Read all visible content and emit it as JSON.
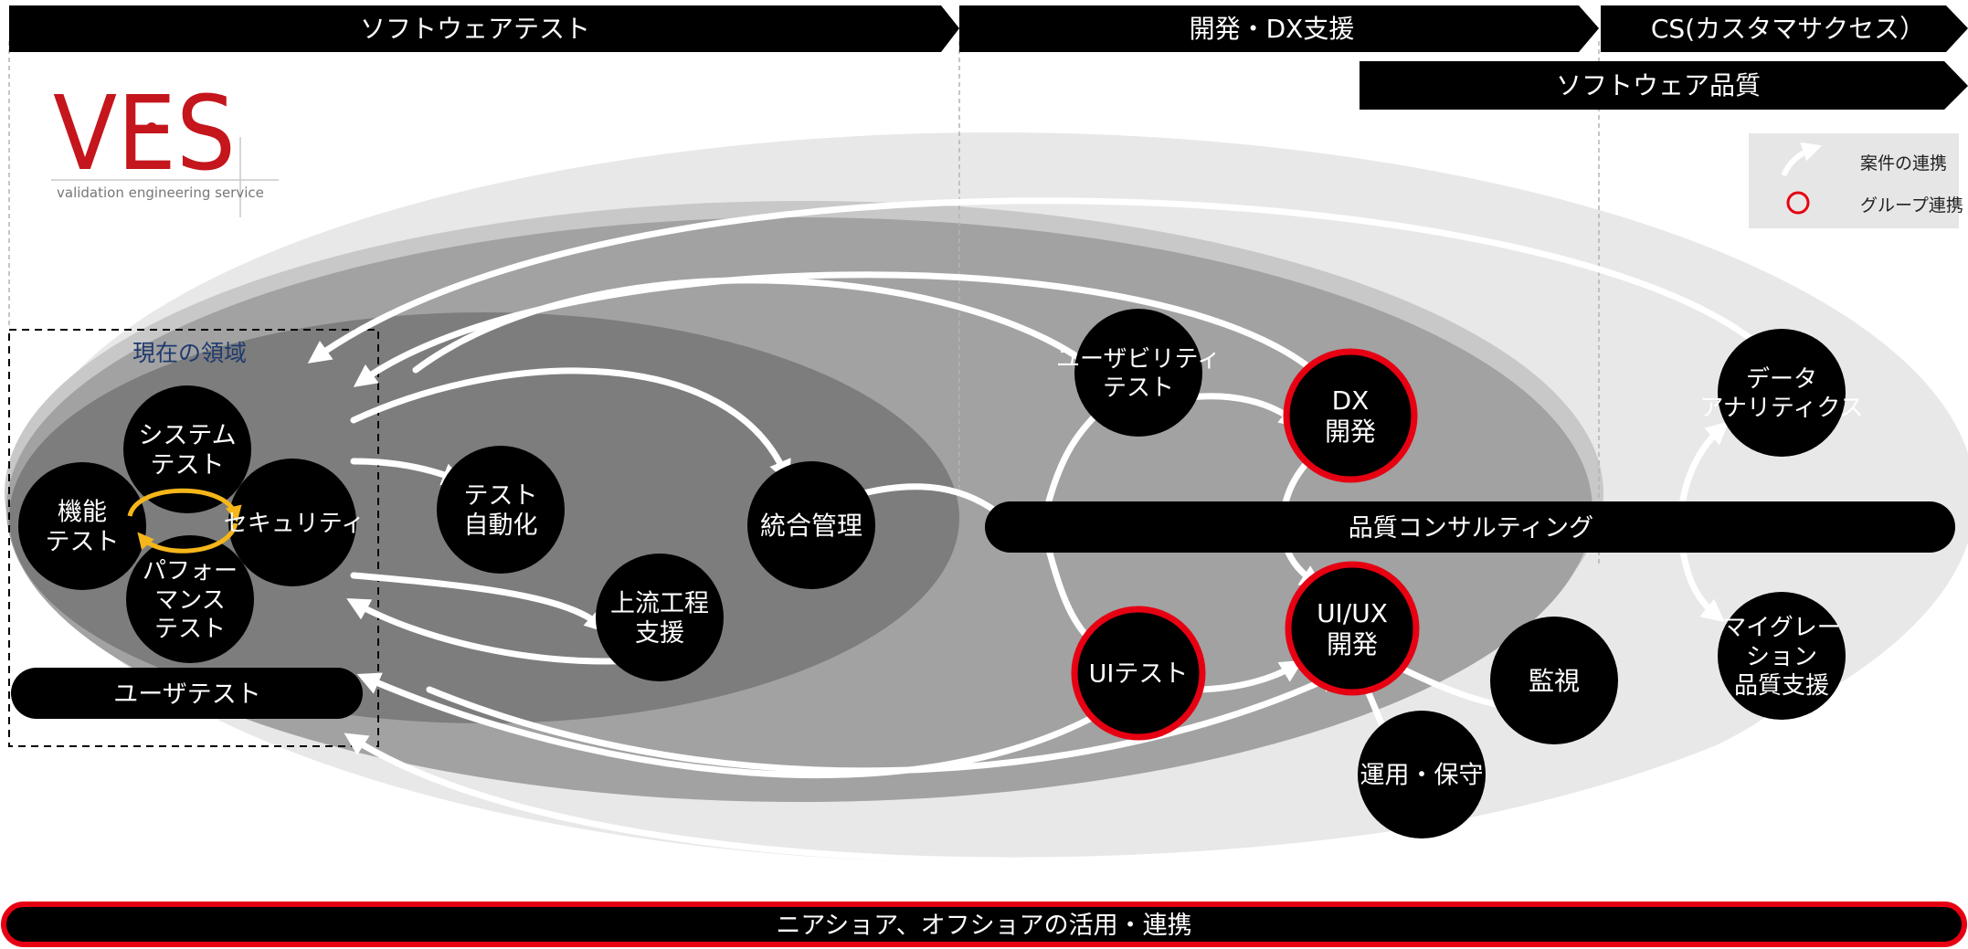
{
  "banners": {
    "software_test": "ソフトウェアテスト",
    "dev_dx": "開発・DX支援",
    "cs": "CS(カスタマサクセス）",
    "software_quality": "ソフトウェア品質"
  },
  "logo": {
    "text": "VES",
    "tagline": "validation engineering service"
  },
  "legend": {
    "arrow_label": "案件の連携",
    "circle_label": "グループ連携"
  },
  "region_label": "現在の領域",
  "nodes": {
    "system_test": [
      "システム",
      "テスト"
    ],
    "functional_test": [
      "機能",
      "テスト"
    ],
    "security": [
      "セキュリティ"
    ],
    "performance_test": [
      "パフォー",
      "マンス",
      "テスト"
    ],
    "test_automation": [
      "テスト",
      "自動化"
    ],
    "integrated_mgmt": [
      "統合管理"
    ],
    "upstream": [
      "上流工程",
      "支援"
    ],
    "usability_test": [
      "ユーザビリティ",
      "テスト"
    ],
    "dx_dev": [
      "DX",
      "開発"
    ],
    "ui_test": [
      "UIテスト"
    ],
    "uiux_dev": [
      "UI/UX",
      "開発"
    ],
    "monitoring": [
      "監視"
    ],
    "ops": [
      "運用・保守"
    ],
    "data_analytics": [
      "データ",
      "アナリティクス"
    ],
    "migration": [
      "マイグレー",
      "ション",
      "品質支援"
    ]
  },
  "bars": {
    "user_test": "ユーザテスト",
    "quality_consulting": "品質コンサルティング",
    "bottom": "ニアショア、オフショアの活用・連携"
  },
  "colors": {
    "group_ring": "#e60012",
    "loop_arrow": "#f5b61a",
    "banner": "#000000",
    "node": "#000000",
    "ellipse_outer": "#e8e8e8",
    "ellipse_mid": "#c8c8c8",
    "ellipse_inner": "#a2a2a2",
    "ellipse_core": "#7d7d7d"
  }
}
